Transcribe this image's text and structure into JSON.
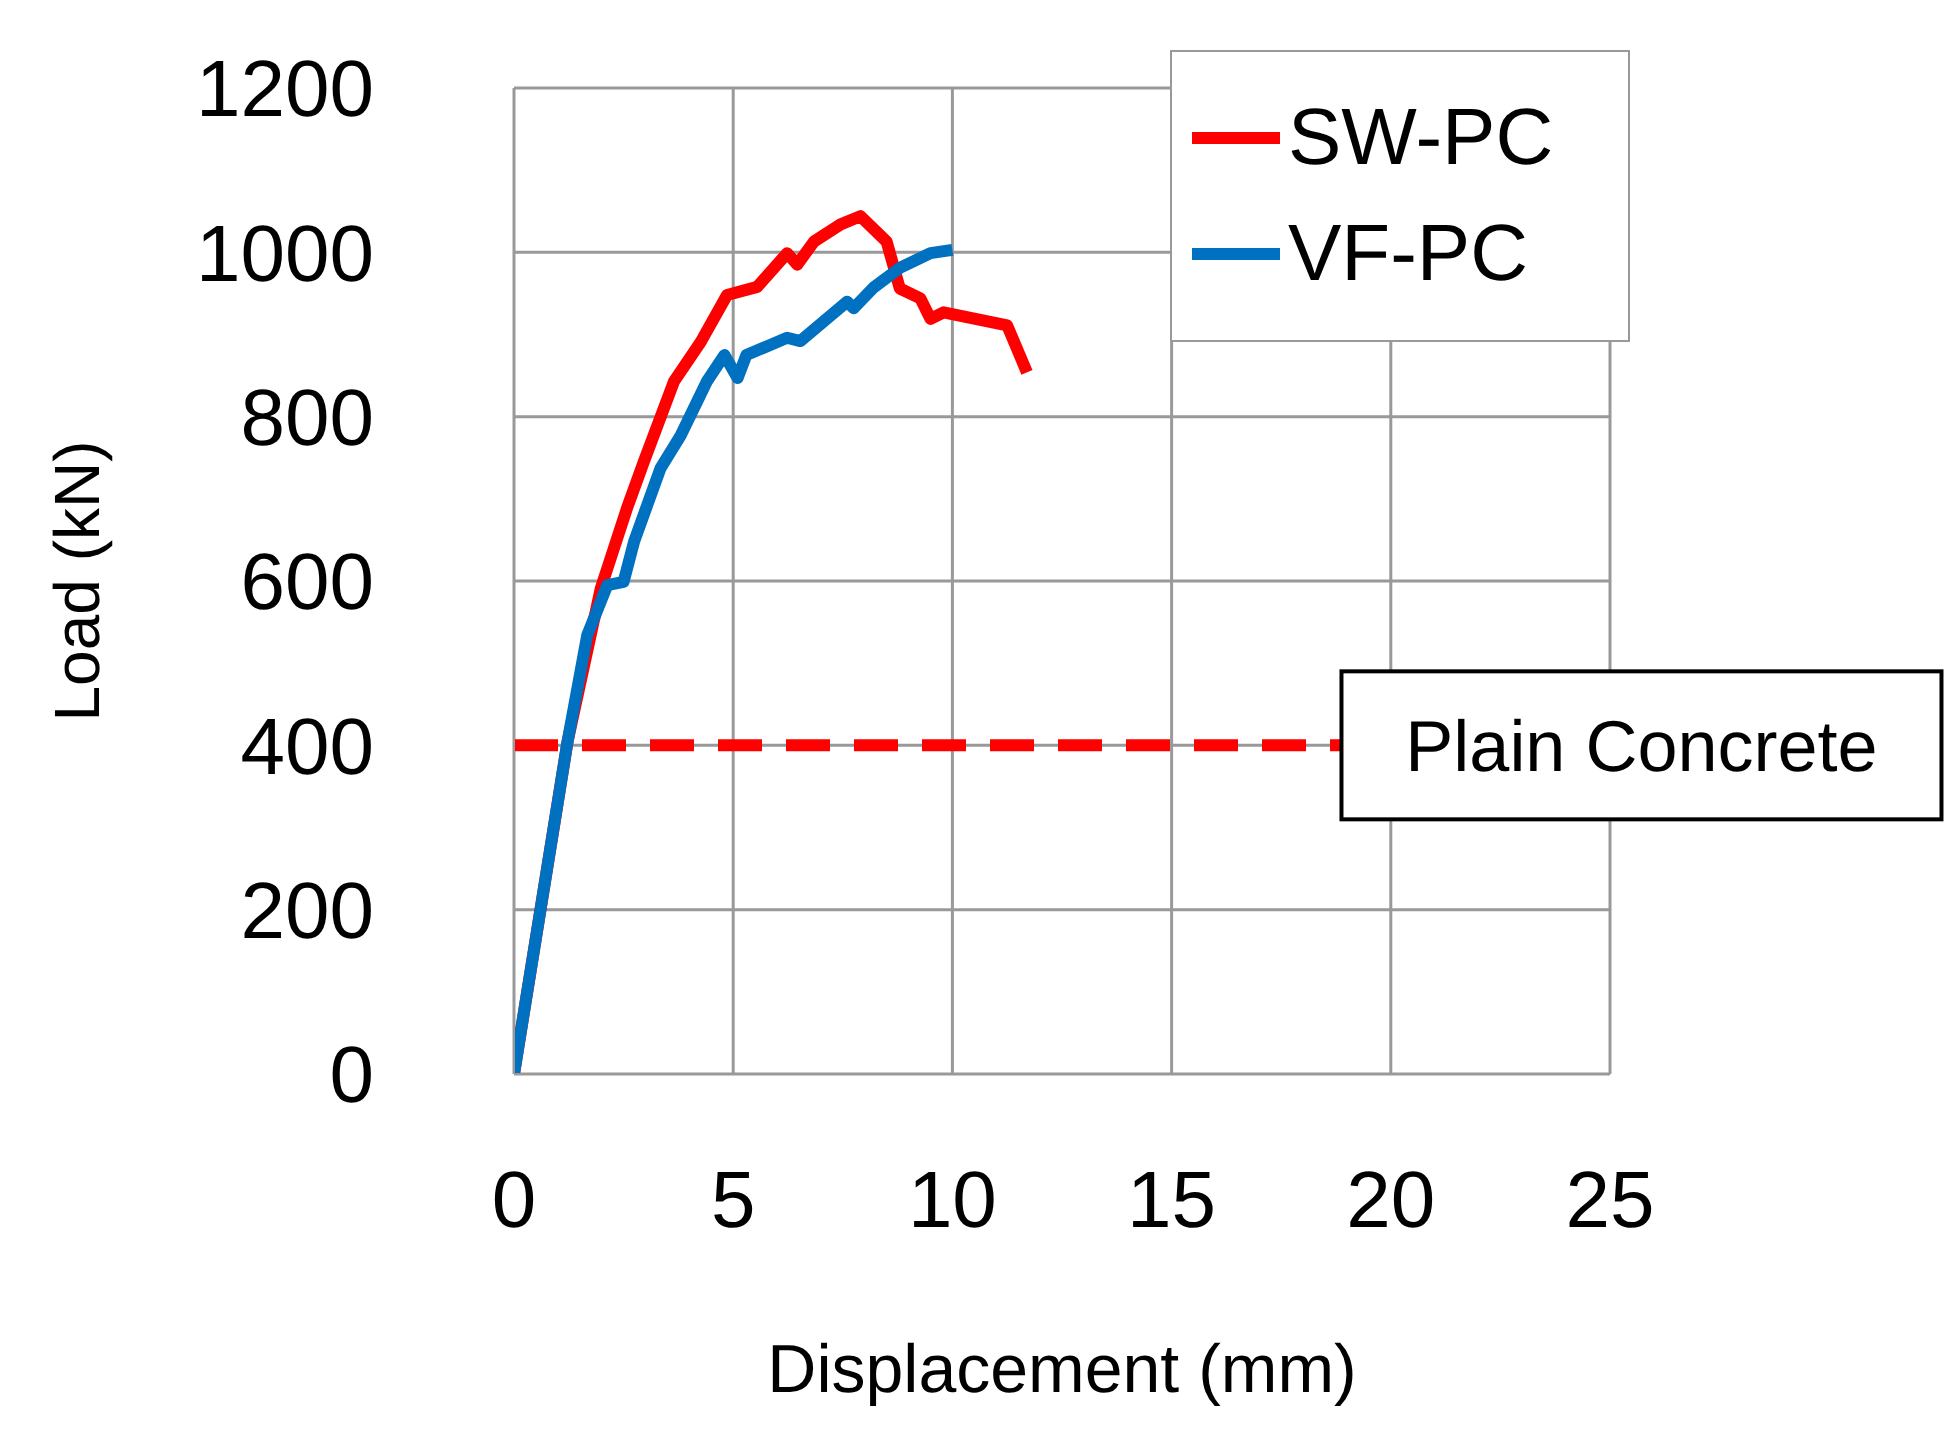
{
  "chart_data": {
    "type": "line",
    "xlabel": "Displacement (mm)",
    "ylabel": "Load (kN)",
    "xlim": [
      0,
      25
    ],
    "xticks": [
      0,
      5,
      10,
      15,
      20,
      25
    ],
    "ylim": [
      0,
      1200
    ],
    "yticks": [
      0,
      200,
      400,
      600,
      800,
      1000,
      1200
    ],
    "grid": true,
    "legend": "top right",
    "marker": "none",
    "line_style": "solid",
    "ref_lines": [
      {
        "axis": "y",
        "value": 400,
        "label": "Plain Concrete",
        "color": "#ff0000",
        "line_style": "dashed"
      }
    ],
    "series": [
      {
        "name": "SW-PC",
        "color": "#ff0000",
        "x": [
          0,
          1.22,
          1.98,
          2.58,
          2.96,
          3.65,
          4.26,
          4.86,
          5.55,
          6.23,
          6.46,
          6.84,
          7.45,
          7.9,
          8.5,
          8.8,
          9.27,
          9.5,
          9.8,
          11.25,
          11.7
        ],
        "values": [
          0,
          404,
          591,
          689,
          745,
          843,
          891,
          948,
          958,
          999,
          985,
          1013,
          1034,
          1044,
          1013,
          956,
          944,
          919,
          927,
          911,
          854
        ]
      },
      {
        "name": "VF-PC",
        "color": "#0070c0",
        "x": [
          0,
          1.22,
          1.67,
          2.13,
          2.5,
          2.74,
          3.34,
          3.8,
          4.4,
          4.8,
          5.1,
          5.3,
          6.23,
          6.53,
          7.6,
          7.75,
          8.2,
          8.8,
          9.5,
          10.0
        ],
        "values": [
          0,
          404,
          534,
          595,
          599,
          648,
          737,
          777,
          843,
          875,
          847,
          875,
          896,
          892,
          940,
          932,
          957,
          981,
          999,
          1003
        ]
      }
    ]
  }
}
